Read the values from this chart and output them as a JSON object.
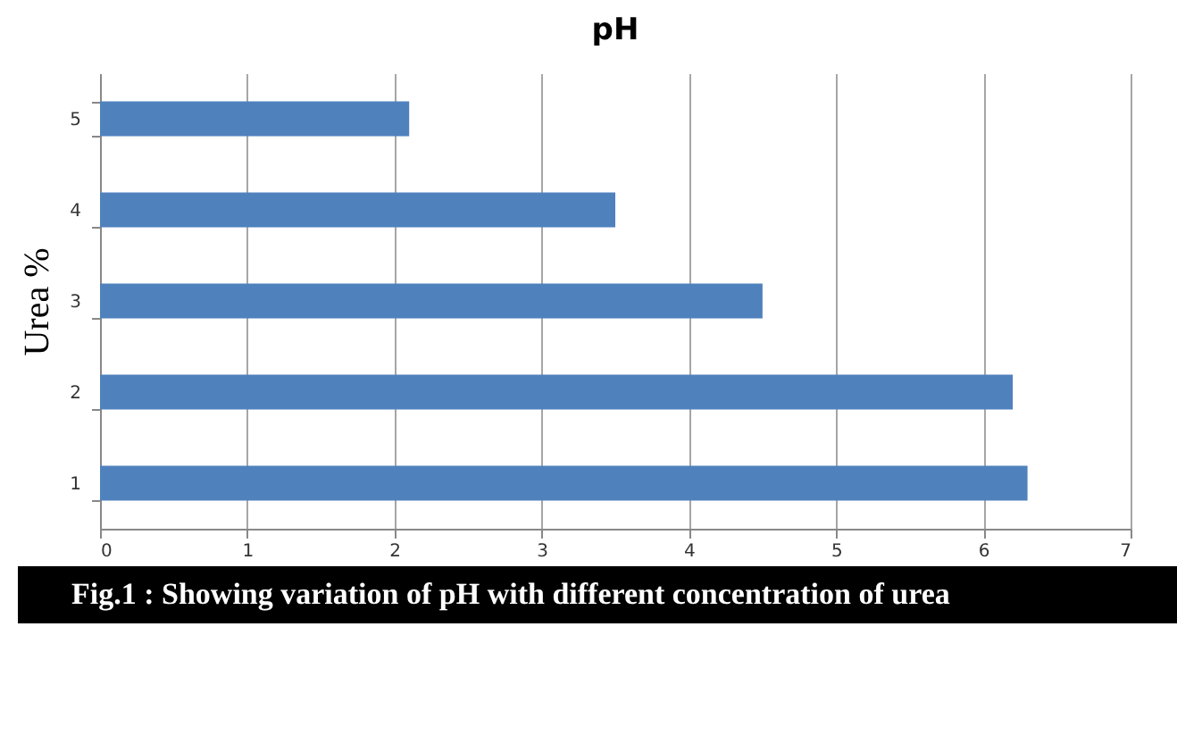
{
  "chart_data": {
    "type": "bar",
    "orientation": "horizontal",
    "title": "pH",
    "ylabel": "Urea %",
    "categories": [
      "5",
      "4",
      "3",
      "2",
      "1"
    ],
    "values": [
      2.1,
      3.5,
      4.5,
      6.2,
      6.3
    ],
    "color": "#4f81bd",
    "xlim": [
      0,
      7
    ],
    "xticks": [
      0,
      1,
      2,
      3,
      4,
      5,
      6,
      7
    ],
    "grid": "x",
    "annotations": [
      "Fig.1 :      Showing variation of pH with different concentration of urea"
    ]
  }
}
